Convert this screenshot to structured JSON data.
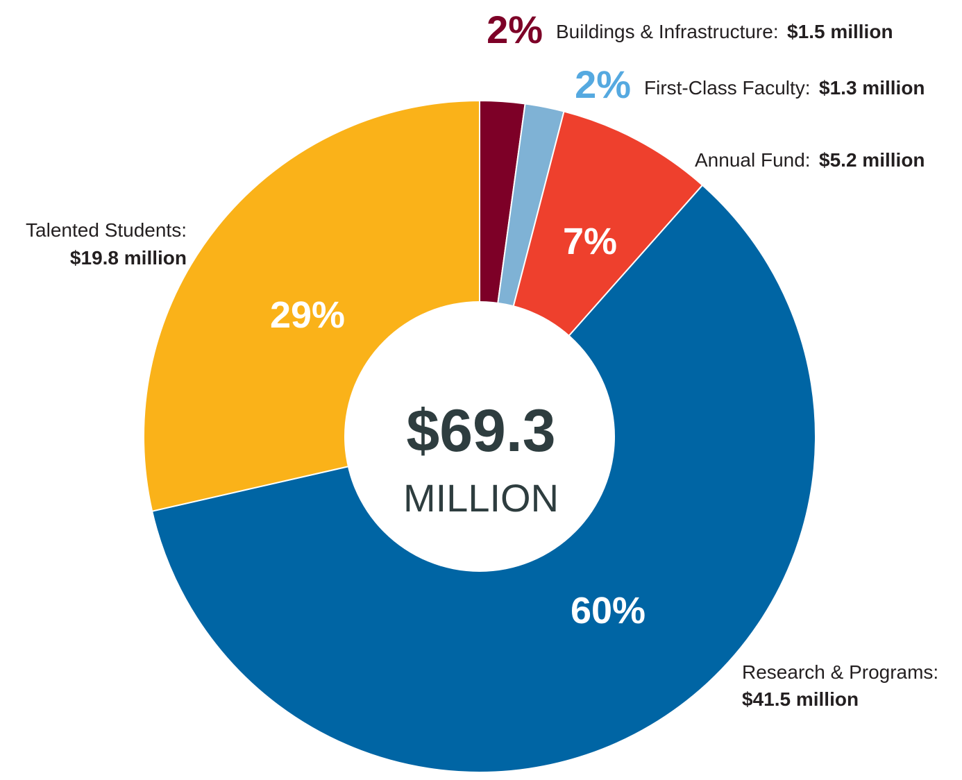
{
  "chart_data": {
    "type": "pie",
    "variant": "donut",
    "total_value": "$69.3",
    "total_unit": "MILLION",
    "slices": [
      {
        "name": "Buildings & Infrastructure",
        "name_text": "Buildings & Infrastructure:",
        "amount": 1.5,
        "amount_text": "$1.5 million",
        "percent": 2,
        "percent_text": "2%",
        "color": "#7d0027",
        "label_color": "#7d0027"
      },
      {
        "name": "First-Class Faculty",
        "name_text": "First-Class Faculty:",
        "amount": 1.3,
        "amount_text": "$1.3 million",
        "percent": 2,
        "percent_text": "2%",
        "color": "#7fb2d5",
        "label_color": "#55a9e0"
      },
      {
        "name": "Annual Fund",
        "name_text": "Annual Fund:",
        "amount": 5.2,
        "amount_text": "$5.2 million",
        "percent": 7,
        "percent_text": "7%",
        "color": "#ee402d",
        "label_color": "#ffffff"
      },
      {
        "name": "Research & Programs",
        "name_text": "Research & Programs:",
        "amount": 41.5,
        "amount_text": "$41.5 million",
        "percent": 60,
        "percent_text": "60%",
        "color": "#0065a4",
        "label_color": "#ffffff"
      },
      {
        "name": "Talented Students",
        "name_text": "Talented Students:",
        "amount": 19.8,
        "amount_text": "$19.8 million",
        "percent": 29,
        "percent_text": "29%",
        "color": "#fab219",
        "label_color": "#ffffff"
      }
    ]
  }
}
